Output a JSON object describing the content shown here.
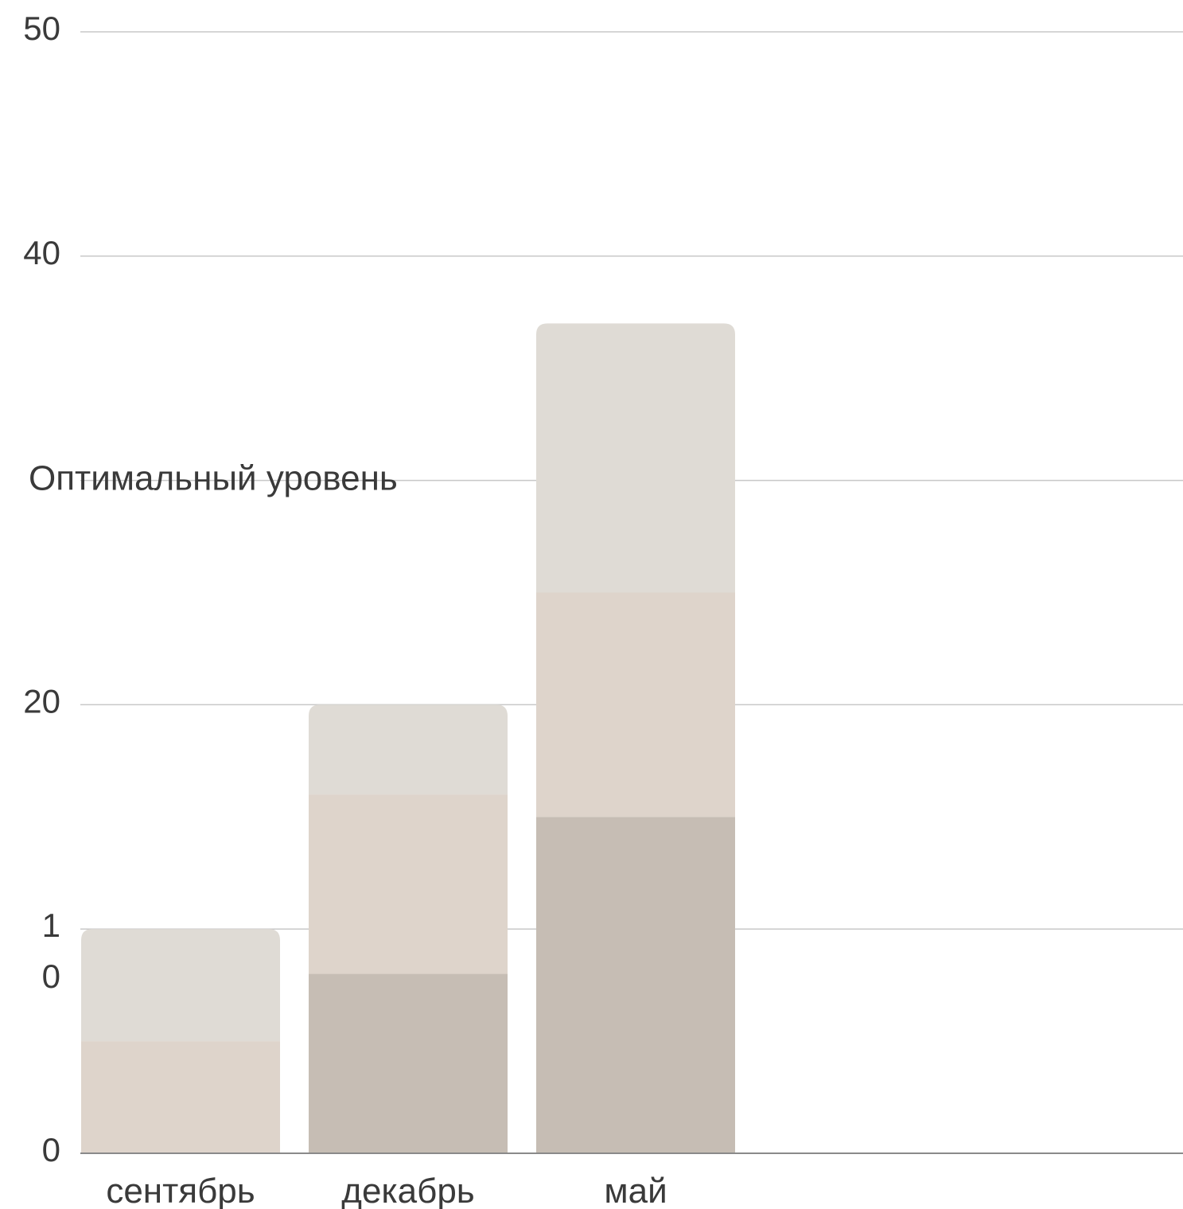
{
  "chart_data": {
    "type": "bar",
    "stacked": true,
    "categories": [
      "сентябрь",
      "декабрь",
      "май"
    ],
    "series": [
      {
        "values": [
          0,
          8,
          15
        ],
        "color": "#c6bdb4"
      },
      {
        "values": [
          5,
          8,
          10
        ],
        "color": "#ded4cb"
      },
      {
        "values": [
          5,
          4,
          12
        ],
        "color": "#dfdbd5"
      }
    ],
    "y_ticks": [
      {
        "value": 0,
        "label": "0"
      },
      {
        "value": 10,
        "label": "1\n0"
      },
      {
        "value": 20,
        "label": "20"
      },
      {
        "value": 30,
        "label": ""
      },
      {
        "value": 40,
        "label": "40"
      },
      {
        "value": 50,
        "label": "50"
      }
    ],
    "ylim": [
      0,
      50
    ],
    "grid": true,
    "reference_line": {
      "value": 30,
      "label": "Оптимальный уровень"
    },
    "title": "",
    "xlabel": "",
    "ylabel": "",
    "colors": {
      "grid": "#c8c8c8",
      "axis": "#8a8a8a",
      "text": "#3a3a3a"
    }
  }
}
